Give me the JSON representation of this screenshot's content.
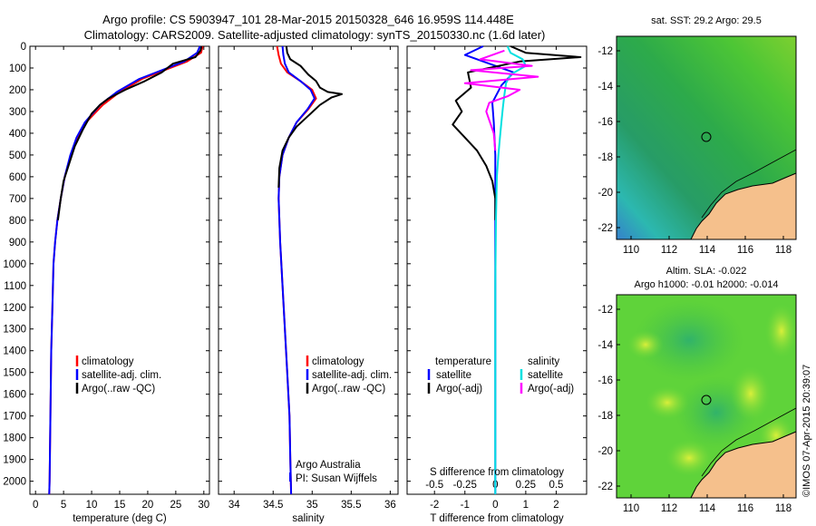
{
  "header": {
    "title_line1": "Argo profile: CS 5903947_101 28-Mar-2015 20150328_646 16.959S 114.448E",
    "title_line2": "Climatology: CARS2009. Satellite-adjusted climatology: synTS_20150330.nc (1.6d later)"
  },
  "colors": {
    "climatology": "#ff0000",
    "satellite": "#0000ff",
    "argo": "#000000",
    "sal_satellite": "#00e0e0",
    "sal_argo": "#ff00ff",
    "land": "#f5c08c"
  },
  "map_sst": {
    "title": "sat. SST: 29.2  Argo: 29.5",
    "ylabels": [
      "-12",
      "-14",
      "-16",
      "-18",
      "-20",
      "-22"
    ],
    "xlabels": [
      "110",
      "112",
      "114",
      "116",
      "118"
    ]
  },
  "map_sla": {
    "title1": "Altim. SLA: -0.022",
    "title2": "Argo h1000: -0.01  h2000: -0.014",
    "ylabels": [
      "-12",
      "-14",
      "-16",
      "-18",
      "-20",
      "-22"
    ],
    "xlabels": [
      "110",
      "112",
      "114",
      "116",
      "118"
    ]
  },
  "side_stamp": "©IMOS 07-Apr-2015 20:39:07",
  "chart_data": [
    {
      "type": "line",
      "id": "temperature",
      "xlabel": "temperature (deg C)",
      "xlim": [
        -1,
        31
      ],
      "ylim": [
        2060,
        0
      ],
      "xticks": [
        0,
        5,
        10,
        15,
        20,
        25,
        30
      ],
      "yticks": [
        0,
        100,
        200,
        300,
        400,
        500,
        600,
        700,
        800,
        900,
        1000,
        1100,
        1200,
        1300,
        1400,
        1500,
        1600,
        1700,
        1800,
        1900,
        2000
      ],
      "legend": [
        "climatology",
        "satellite-adj. clim.",
        "Argo(..raw -QC)"
      ],
      "series": [
        {
          "name": "climatology",
          "color": "#ff0000",
          "x": [
            29.8,
            29.5,
            27.0,
            24.0,
            19.0,
            15.0,
            12.0,
            9.0,
            7.5,
            6.3,
            5.2,
            4.5,
            3.9,
            3.5,
            3.2,
            3.0,
            2.8,
            2.7,
            2.6,
            2.55,
            2.5,
            2.45
          ],
          "y": [
            0,
            30,
            70,
            100,
            150,
            210,
            270,
            350,
            420,
            500,
            600,
            700,
            800,
            900,
            1000,
            1200,
            1400,
            1600,
            1800,
            1900,
            2000,
            2060
          ]
        },
        {
          "name": "satellite-adj. clim.",
          "color": "#0000ff",
          "x": [
            29.3,
            28.8,
            26.5,
            23.5,
            18.5,
            14.5,
            11.5,
            8.8,
            7.3,
            6.2,
            5.2,
            4.5,
            3.9,
            3.5,
            3.2,
            3.0,
            2.8,
            2.7,
            2.6,
            2.55,
            2.5,
            2.45
          ],
          "y": [
            0,
            30,
            70,
            100,
            150,
            210,
            270,
            350,
            420,
            500,
            600,
            700,
            800,
            900,
            1000,
            1200,
            1400,
            1600,
            1800,
            1900,
            2000,
            2060
          ]
        },
        {
          "name": "Argo(..raw -QC)",
          "color": "#000000",
          "x": [
            29.6,
            29.4,
            28.5,
            24.5,
            22.5,
            19.5,
            16.0,
            13.0,
            11.5,
            10.0,
            8.5,
            7.0,
            6.0,
            5.0,
            4.5,
            4.0
          ],
          "y": [
            0,
            20,
            50,
            80,
            120,
            160,
            200,
            240,
            270,
            310,
            380,
            460,
            540,
            620,
            700,
            800
          ]
        }
      ]
    },
    {
      "type": "line",
      "id": "salinity",
      "xlabel": "salinity",
      "xlim": [
        33.8,
        36.1
      ],
      "ylim": [
        2060,
        0
      ],
      "xticks": [
        34,
        34.5,
        35,
        35.5,
        36
      ],
      "legend": [
        "climatology",
        "satellite-adj. clim.",
        "Argo(..raw -QC)"
      ],
      "annotation": [
        "Argo Australia",
        "PI: Susan Wijffels"
      ],
      "series": [
        {
          "name": "climatology",
          "color": "#ff0000",
          "x": [
            34.55,
            34.57,
            34.6,
            34.68,
            34.85,
            35.0,
            35.05,
            34.95,
            34.8,
            34.7,
            34.62,
            34.58,
            34.57,
            34.59,
            34.62,
            34.65,
            34.68,
            34.71,
            34.72,
            34.73
          ],
          "y": [
            0,
            40,
            80,
            120,
            160,
            200,
            240,
            290,
            350,
            420,
            500,
            600,
            700,
            900,
            1100,
            1300,
            1500,
            1700,
            1900,
            2060
          ]
        },
        {
          "name": "satellite-adj. clim.",
          "color": "#0000ff",
          "x": [
            34.62,
            34.63,
            34.65,
            34.7,
            34.85,
            34.98,
            35.03,
            34.94,
            34.8,
            34.7,
            34.62,
            34.58,
            34.57,
            34.59,
            34.62,
            34.65,
            34.68,
            34.71,
            34.72,
            34.73
          ],
          "y": [
            0,
            40,
            80,
            120,
            160,
            200,
            240,
            290,
            350,
            420,
            500,
            600,
            700,
            900,
            1100,
            1300,
            1500,
            1700,
            1900,
            2060
          ]
        },
        {
          "name": "Argo(..raw -QC)",
          "color": "#000000",
          "x": [
            34.67,
            34.68,
            34.72,
            34.85,
            34.95,
            35.05,
            35.1,
            35.2,
            35.38,
            35.25,
            35.1,
            34.95,
            34.8,
            34.7,
            34.62,
            34.58,
            34.57
          ],
          "y": [
            0,
            30,
            60,
            90,
            130,
            160,
            190,
            210,
            220,
            235,
            270,
            320,
            370,
            420,
            480,
            560,
            650
          ]
        }
      ]
    },
    {
      "type": "line",
      "id": "difference",
      "xlabel": "T difference from climatology",
      "xlabel_top": "S difference from climatology",
      "xlim": [
        -2.9,
        3.0
      ],
      "ylim": [
        2060,
        0
      ],
      "xticks": [
        -2,
        -1,
        0,
        1,
        2
      ],
      "top_ticks": [
        -0.5,
        -0.25,
        0,
        0.25,
        0.5
      ],
      "legend_temperature_title": "temperature",
      "legend_salinity_title": "salinity",
      "legend": [
        "satellite",
        "Argo(-adj)",
        "satellite",
        "Argo(-adj)"
      ],
      "series": [
        {
          "name": "satellite",
          "color": "#0000ff",
          "x": [
            -0.4,
            -1.0,
            -0.2,
            0.6,
            0.2,
            -0.1,
            -0.05,
            0.0,
            0.0,
            0.0,
            0.0,
            0.0,
            0.0
          ],
          "y": [
            0,
            40,
            80,
            120,
            180,
            260,
            350,
            500,
            700,
            900,
            1200,
            1600,
            2060
          ]
        },
        {
          "name": "Argo(-adj)",
          "color": "#000000",
          "x": [
            0.5,
            1.0,
            2.8,
            0.8,
            -0.9,
            -0.8,
            -1.3,
            -1.1,
            -1.4,
            -1.0,
            -0.6,
            -0.3,
            -0.1,
            0.0,
            0.0
          ],
          "y": [
            0,
            30,
            50,
            70,
            120,
            190,
            250,
            300,
            360,
            420,
            480,
            550,
            620,
            700,
            800
          ]
        },
        {
          "name": "satellite",
          "color": "#00e0e0",
          "x": [
            0.4,
            0.5,
            0.9,
            1.0,
            0.5,
            0.35,
            0.3,
            0.25,
            0.2,
            0.15,
            0.1,
            0.05,
            0.02,
            0.0,
            0.0
          ],
          "y": [
            0,
            30,
            60,
            90,
            130,
            170,
            220,
            280,
            350,
            420,
            500,
            600,
            800,
            1100,
            2060
          ]
        },
        {
          "name": "Argo(-adj)",
          "color": "#ff00ff",
          "x": [
            0.3,
            -0.5,
            1.2,
            -0.8,
            1.4,
            -1.0,
            0.8,
            0.4,
            -0.2,
            -0.3,
            -0.2,
            -0.05,
            0.0
          ],
          "y": [
            20,
            60,
            90,
            110,
            140,
            170,
            200,
            230,
            260,
            300,
            340,
            400,
            480
          ]
        }
      ]
    }
  ]
}
